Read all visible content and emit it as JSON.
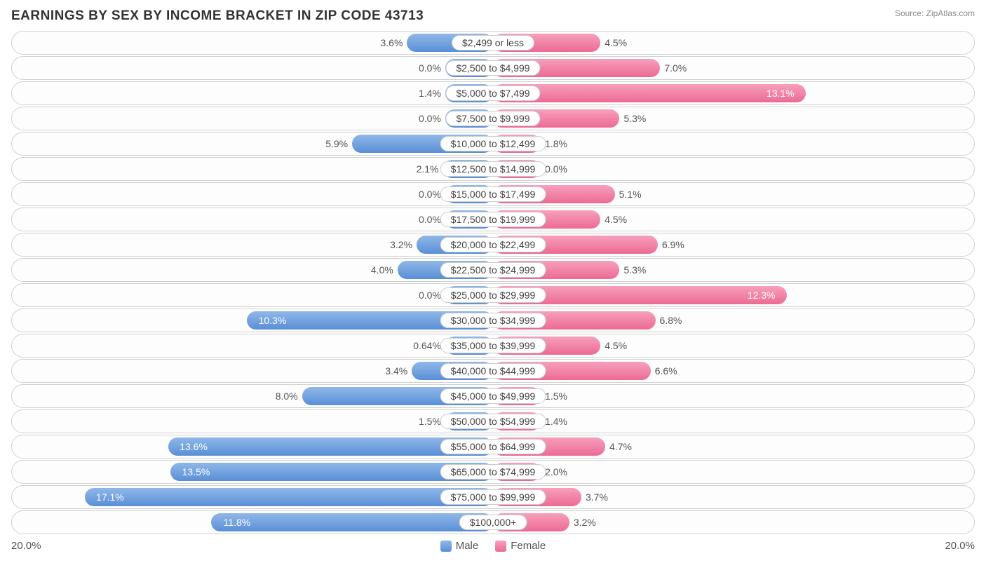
{
  "title": "EARNINGS BY SEX BY INCOME BRACKET IN ZIP CODE 43713",
  "source": "Source: ZipAtlas.com",
  "axis_max": 20.0,
  "axis_left_label": "20.0%",
  "axis_right_label": "20.0%",
  "colors": {
    "male_top": "#8fb8e8",
    "male_bottom": "#5a8fd6",
    "female_top": "#f7a0bb",
    "female_bottom": "#ec6a94",
    "row_border": "#d0d0d0",
    "text": "#444444",
    "background": "#ffffff"
  },
  "legend": {
    "male": "Male",
    "female": "Female"
  },
  "label_fontsize": 14,
  "min_bar_pct_for_visibility": 2.0,
  "inside_threshold": 10.0,
  "rows": [
    {
      "category": "$2,499 or less",
      "male": 3.6,
      "male_label": "3.6%",
      "female": 4.5,
      "female_label": "4.5%"
    },
    {
      "category": "$2,500 to $4,999",
      "male": 0.0,
      "male_label": "0.0%",
      "female": 7.0,
      "female_label": "7.0%"
    },
    {
      "category": "$5,000 to $7,499",
      "male": 1.4,
      "male_label": "1.4%",
      "female": 13.1,
      "female_label": "13.1%"
    },
    {
      "category": "$7,500 to $9,999",
      "male": 0.0,
      "male_label": "0.0%",
      "female": 5.3,
      "female_label": "5.3%"
    },
    {
      "category": "$10,000 to $12,499",
      "male": 5.9,
      "male_label": "5.9%",
      "female": 1.8,
      "female_label": "1.8%"
    },
    {
      "category": "$12,500 to $14,999",
      "male": 2.1,
      "male_label": "2.1%",
      "female": 0.0,
      "female_label": "0.0%"
    },
    {
      "category": "$15,000 to $17,499",
      "male": 0.0,
      "male_label": "0.0%",
      "female": 5.1,
      "female_label": "5.1%"
    },
    {
      "category": "$17,500 to $19,999",
      "male": 0.0,
      "male_label": "0.0%",
      "female": 4.5,
      "female_label": "4.5%"
    },
    {
      "category": "$20,000 to $22,499",
      "male": 3.2,
      "male_label": "3.2%",
      "female": 6.9,
      "female_label": "6.9%"
    },
    {
      "category": "$22,500 to $24,999",
      "male": 4.0,
      "male_label": "4.0%",
      "female": 5.3,
      "female_label": "5.3%"
    },
    {
      "category": "$25,000 to $29,999",
      "male": 0.0,
      "male_label": "0.0%",
      "female": 12.3,
      "female_label": "12.3%"
    },
    {
      "category": "$30,000 to $34,999",
      "male": 10.3,
      "male_label": "10.3%",
      "female": 6.8,
      "female_label": "6.8%"
    },
    {
      "category": "$35,000 to $39,999",
      "male": 0.64,
      "male_label": "0.64%",
      "female": 4.5,
      "female_label": "4.5%"
    },
    {
      "category": "$40,000 to $44,999",
      "male": 3.4,
      "male_label": "3.4%",
      "female": 6.6,
      "female_label": "6.6%"
    },
    {
      "category": "$45,000 to $49,999",
      "male": 8.0,
      "male_label": "8.0%",
      "female": 1.5,
      "female_label": "1.5%"
    },
    {
      "category": "$50,000 to $54,999",
      "male": 1.5,
      "male_label": "1.5%",
      "female": 1.4,
      "female_label": "1.4%"
    },
    {
      "category": "$55,000 to $64,999",
      "male": 13.6,
      "male_label": "13.6%",
      "female": 4.7,
      "female_label": "4.7%"
    },
    {
      "category": "$65,000 to $74,999",
      "male": 13.5,
      "male_label": "13.5%",
      "female": 2.0,
      "female_label": "2.0%"
    },
    {
      "category": "$75,000 to $99,999",
      "male": 17.1,
      "male_label": "17.1%",
      "female": 3.7,
      "female_label": "3.7%"
    },
    {
      "category": "$100,000+",
      "male": 11.8,
      "male_label": "11.8%",
      "female": 3.2,
      "female_label": "3.2%"
    }
  ]
}
